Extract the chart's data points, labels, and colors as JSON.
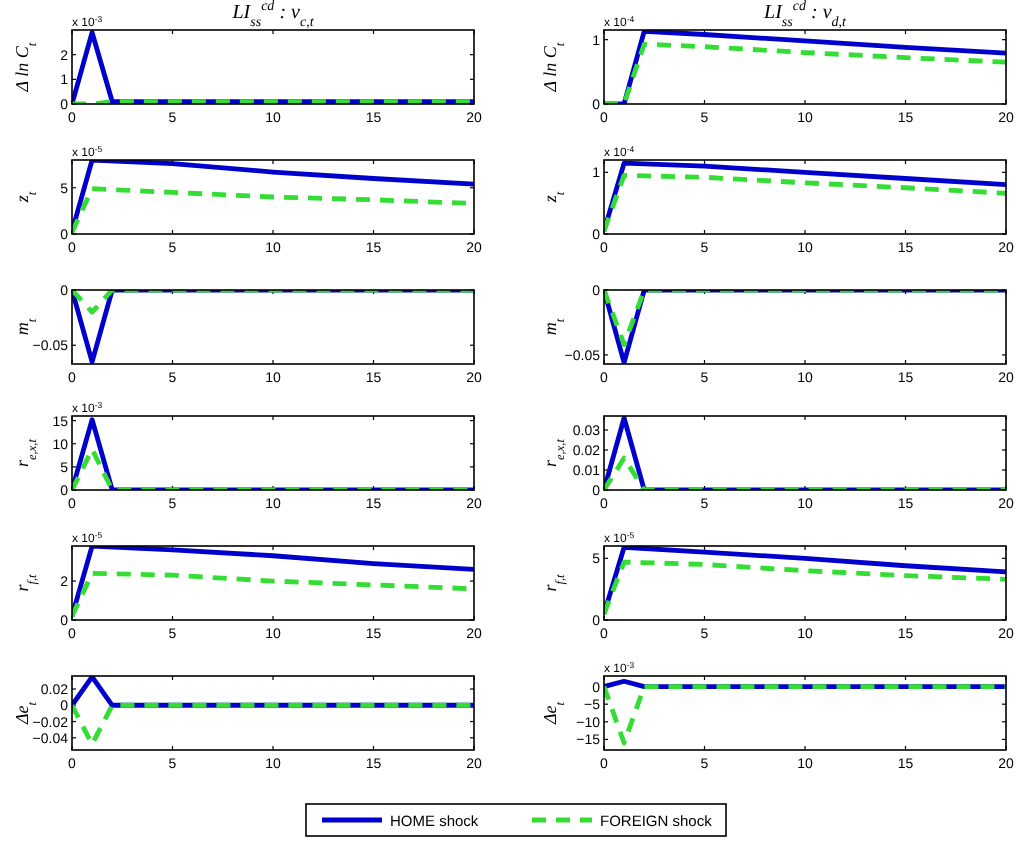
{
  "chart_data": [
    {
      "type": "line",
      "title": "LI$_{ss}$$^{cd}$ : ν$_{c,t}$",
      "ylabel": "Δ ln C$_{t}$",
      "annotations": [
        "x 10$^{-3}$"
      ],
      "x": [
        0,
        1,
        2,
        5,
        10,
        15,
        20
      ],
      "xlim": [
        0,
        20
      ],
      "xticks": [
        0,
        5,
        10,
        15,
        20
      ],
      "ylim": [
        0,
        3
      ],
      "yticks": [
        0,
        1,
        2
      ],
      "series": [
        {
          "color": "#0000cc",
          "line_style": "solid",
          "values": [
            0,
            2.9,
            0.1,
            0.1,
            0.1,
            0.1,
            0.1
          ]
        },
        {
          "color": "#33dd33",
          "line_style": "dashed",
          "values": [
            0,
            0,
            0.1,
            0.1,
            0.1,
            0.1,
            0.1
          ]
        }
      ]
    },
    {
      "type": "line",
      "ylabel": "z$_{t}$",
      "annotations": [
        "x 10$^{-5}$"
      ],
      "x": [
        0,
        1,
        5,
        10,
        15,
        20
      ],
      "xlim": [
        0,
        20
      ],
      "xticks": [
        0,
        5,
        10,
        15,
        20
      ],
      "ylim": [
        0,
        8
      ],
      "yticks": [
        0,
        5
      ],
      "series": [
        {
          "color": "#0000cc",
          "line_style": "solid",
          "values": [
            0.3,
            8,
            7.6,
            6.7,
            6.0,
            5.4
          ]
        },
        {
          "color": "#33dd33",
          "line_style": "dashed",
          "values": [
            0.2,
            4.9,
            4.5,
            4.0,
            3.7,
            3.3
          ]
        }
      ]
    },
    {
      "type": "line",
      "ylabel": "m$_{t}$",
      "x": [
        0,
        1,
        2,
        5,
        10,
        15,
        20
      ],
      "xlim": [
        0,
        20
      ],
      "xticks": [
        0,
        5,
        10,
        15,
        20
      ],
      "ylim": [
        -0.067,
        0
      ],
      "yticks": [
        -0.05,
        0
      ],
      "series": [
        {
          "color": "#0000cc",
          "line_style": "solid",
          "values": [
            0,
            -0.065,
            0,
            0,
            0,
            0,
            0
          ]
        },
        {
          "color": "#33dd33",
          "line_style": "dashed",
          "values": [
            0,
            -0.02,
            0,
            0,
            0,
            0,
            0
          ]
        }
      ]
    },
    {
      "type": "line",
      "ylabel": "r$_{e,x,t}$",
      "annotations": [
        "x 10$^{-3}$"
      ],
      "x": [
        0,
        1,
        2,
        5,
        10,
        15,
        20
      ],
      "xlim": [
        0,
        20
      ],
      "xticks": [
        0,
        5,
        10,
        15,
        20
      ],
      "ylim": [
        0,
        16
      ],
      "yticks": [
        0,
        5,
        10,
        15
      ],
      "series": [
        {
          "color": "#0000cc",
          "line_style": "solid",
          "values": [
            0,
            15.2,
            0,
            0,
            0,
            0,
            0
          ]
        },
        {
          "color": "#33dd33",
          "line_style": "dashed",
          "values": [
            0,
            8.8,
            0,
            0,
            0,
            0,
            0
          ]
        }
      ]
    },
    {
      "type": "line",
      "ylabel": "r$_{f,t}$",
      "annotations": [
        "x 10$^{-5}$"
      ],
      "x": [
        0,
        1,
        5,
        10,
        15,
        20
      ],
      "xlim": [
        0,
        20
      ],
      "xticks": [
        0,
        5,
        10,
        15,
        20
      ],
      "ylim": [
        0,
        3.8
      ],
      "yticks": [
        0,
        2
      ],
      "series": [
        {
          "color": "#0000cc",
          "line_style": "solid",
          "values": [
            0.2,
            3.8,
            3.6,
            3.3,
            2.9,
            2.6
          ]
        },
        {
          "color": "#33dd33",
          "line_style": "dashed",
          "values": [
            0.2,
            2.4,
            2.3,
            2.0,
            1.8,
            1.6
          ]
        }
      ]
    },
    {
      "type": "line",
      "ylabel": "Δe$_{t}$",
      "legend": "bottom",
      "x": [
        0,
        1,
        2,
        5,
        10,
        15,
        20
      ],
      "xlim": [
        0,
        20
      ],
      "xticks": [
        0,
        5,
        10,
        15,
        20
      ],
      "ylim": [
        -0.055,
        0.036
      ],
      "yticks": [
        -0.04,
        -0.02,
        0,
        0.02
      ],
      "series": [
        {
          "name": "HOME shock",
          "color": "#0000cc",
          "line_style": "solid",
          "values": [
            0,
            0.035,
            0,
            0,
            0,
            0,
            0
          ]
        },
        {
          "name": "FOREIGN shock",
          "color": "#33dd33",
          "line_style": "dashed",
          "values": [
            0,
            -0.048,
            0,
            0,
            0,
            0,
            0
          ]
        }
      ]
    },
    {
      "type": "line",
      "title": "LI$_{ss}$$^{cd}$ : ν$_{d,t}$",
      "ylabel": "Δ ln C$_{t}$",
      "annotations": [
        "x 10$^{-4}$"
      ],
      "x": [
        0,
        1,
        2,
        5,
        10,
        15,
        20
      ],
      "xlim": [
        0,
        20
      ],
      "xticks": [
        0,
        5,
        10,
        15,
        20
      ],
      "ylim": [
        0,
        1.15
      ],
      "yticks": [
        0,
        1
      ],
      "series": [
        {
          "color": "#0000cc",
          "line_style": "solid",
          "values": [
            0,
            0,
            1.13,
            1.08,
            0.98,
            0.88,
            0.79
          ]
        },
        {
          "color": "#33dd33",
          "line_style": "dashed",
          "values": [
            0,
            0,
            0.93,
            0.89,
            0.8,
            0.72,
            0.65
          ]
        }
      ]
    },
    {
      "type": "line",
      "ylabel": "z$_{t}$",
      "annotations": [
        "x 10$^{-4}$"
      ],
      "x": [
        0,
        1,
        5,
        10,
        15,
        20
      ],
      "xlim": [
        0,
        20
      ],
      "xticks": [
        0,
        5,
        10,
        15,
        20
      ],
      "ylim": [
        0,
        1.2
      ],
      "yticks": [
        0,
        1
      ],
      "series": [
        {
          "color": "#0000cc",
          "line_style": "solid",
          "values": [
            0.05,
            1.15,
            1.1,
            1.0,
            0.9,
            0.8
          ]
        },
        {
          "color": "#33dd33",
          "line_style": "dashed",
          "values": [
            0.05,
            0.95,
            0.92,
            0.83,
            0.75,
            0.66
          ]
        }
      ]
    },
    {
      "type": "line",
      "ylabel": "m$_{t}$",
      "x": [
        0,
        1,
        2,
        5,
        10,
        15,
        20
      ],
      "xlim": [
        0,
        20
      ],
      "xticks": [
        0,
        5,
        10,
        15,
        20
      ],
      "ylim": [
        -0.057,
        0
      ],
      "yticks": [
        -0.05,
        0
      ],
      "series": [
        {
          "color": "#0000cc",
          "line_style": "solid",
          "values": [
            0,
            -0.056,
            0,
            0,
            0,
            0,
            0
          ]
        },
        {
          "color": "#33dd33",
          "line_style": "dashed",
          "values": [
            0,
            -0.042,
            0,
            0,
            0,
            0,
            0
          ]
        }
      ]
    },
    {
      "type": "line",
      "ylabel": "r$_{e,x,t}$",
      "x": [
        0,
        1,
        2,
        5,
        10,
        15,
        20
      ],
      "xlim": [
        0,
        20
      ],
      "xticks": [
        0,
        5,
        10,
        15,
        20
      ],
      "ylim": [
        0,
        0.037
      ],
      "yticks": [
        0,
        0.01,
        0.02,
        0.03
      ],
      "series": [
        {
          "color": "#0000cc",
          "line_style": "solid",
          "values": [
            0,
            0.036,
            0,
            0,
            0,
            0,
            0
          ]
        },
        {
          "color": "#33dd33",
          "line_style": "dashed",
          "values": [
            0,
            0.016,
            0,
            0,
            0,
            0,
            0
          ]
        }
      ]
    },
    {
      "type": "line",
      "ylabel": "r$_{f,t}$",
      "annotations": [
        "x 10$^{-5}$"
      ],
      "x": [
        0,
        1,
        5,
        10,
        15,
        20
      ],
      "xlim": [
        0,
        20
      ],
      "xticks": [
        0,
        5,
        10,
        15,
        20
      ],
      "ylim": [
        0,
        6
      ],
      "yticks": [
        0,
        5
      ],
      "series": [
        {
          "color": "#0000cc",
          "line_style": "solid",
          "values": [
            0.5,
            5.9,
            5.5,
            5.0,
            4.4,
            3.9
          ]
        },
        {
          "color": "#33dd33",
          "line_style": "dashed",
          "values": [
            0.5,
            4.7,
            4.5,
            4.0,
            3.6,
            3.3
          ]
        }
      ]
    },
    {
      "type": "line",
      "ylabel": "Δe$_{t}$",
      "annotations": [
        "x 10$^{-3}$"
      ],
      "x": [
        0,
        1,
        2,
        5,
        10,
        15,
        20
      ],
      "xlim": [
        0,
        20
      ],
      "xticks": [
        0,
        5,
        10,
        15,
        20
      ],
      "ylim": [
        -18,
        3
      ],
      "yticks": [
        -15,
        -10,
        -5,
        0
      ],
      "series": [
        {
          "color": "#0000cc",
          "line_style": "solid",
          "values": [
            0,
            1.5,
            0,
            0,
            0,
            0,
            0
          ]
        },
        {
          "color": "#33dd33",
          "line_style": "dashed",
          "values": [
            0,
            -16,
            0,
            0,
            0,
            0,
            0
          ]
        }
      ]
    }
  ]
}
